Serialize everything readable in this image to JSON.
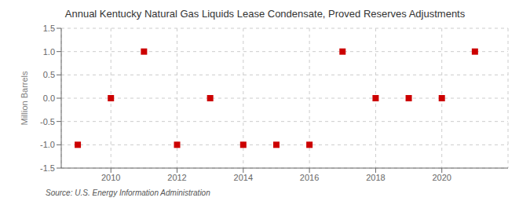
{
  "chart_data": {
    "type": "scatter",
    "title": "Annual Kentucky Natural Gas Liquids Lease Condensate, Proved Reserves Adjustments",
    "ylabel": "Million Barrels",
    "annotations": [
      "Source: U.S. Energy Information Administration"
    ],
    "x": [
      2009,
      2010,
      2011,
      2012,
      2013,
      2014,
      2015,
      2016,
      2017,
      2018,
      2019,
      2020,
      2021
    ],
    "values": [
      -1.0,
      0.0,
      1.0,
      -1.0,
      0.0,
      -1.0,
      -1.0,
      -1.0,
      1.0,
      0.0,
      0.0,
      0.0,
      1.0
    ],
    "color": "#cc0000",
    "marker": "square",
    "xlim": [
      2008.5,
      2022.0
    ],
    "ylim": [
      -1.5,
      1.5
    ],
    "xticks": [
      2010,
      2012,
      2014,
      2016,
      2018,
      2020
    ],
    "yticks": [
      -1.5,
      {
        "value": -1.0,
        "label": "-1.0"
      },
      -0.5,
      {
        "value": 0.0,
        "label": "0.0"
      },
      0.5,
      {
        "value": 1.0,
        "label": "1.0"
      },
      1.5
    ],
    "grid": true
  }
}
